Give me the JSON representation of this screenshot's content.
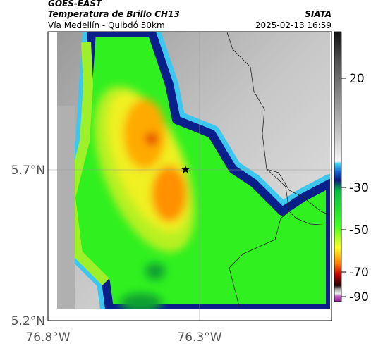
{
  "header": {
    "source": "GOES-EAST",
    "title": "Temperatura de Brillo CH13",
    "subtitle": "Vía Medellín - Quibdó 50km",
    "org": "SIATA",
    "datetime": "2025-02-13 16:59"
  },
  "axes": {
    "y_ticks": [
      "5.7°N",
      "5.2°N"
    ],
    "x_ticks": [
      "76.8°W",
      "76.3°W"
    ]
  },
  "colorbar": {
    "ticks": [
      20,
      -30,
      -50,
      -70,
      -90
    ]
  }
}
